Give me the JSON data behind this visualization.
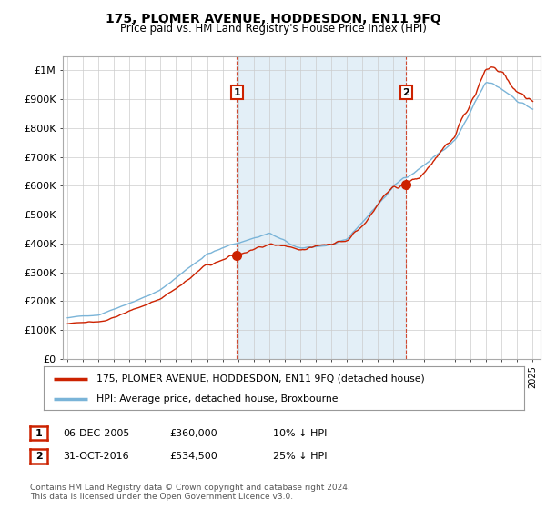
{
  "title": "175, PLOMER AVENUE, HODDESDON, EN11 9FQ",
  "subtitle": "Price paid vs. HM Land Registry's House Price Index (HPI)",
  "ylim": [
    0,
    1050000
  ],
  "yticks": [
    0,
    100000,
    200000,
    300000,
    400000,
    500000,
    600000,
    700000,
    800000,
    900000,
    1000000
  ],
  "ytick_labels": [
    "£0",
    "£100K",
    "£200K",
    "£300K",
    "£400K",
    "£500K",
    "£600K",
    "£700K",
    "£800K",
    "£900K",
    "£1M"
  ],
  "hpi_color": "#7ab4d8",
  "hpi_fill_color": "#c8e0f0",
  "price_color": "#cc2200",
  "marker_color": "#cc2200",
  "vline_color": "#cc2200",
  "sale1_year": 2005.92,
  "sale1_price": 360000,
  "sale2_year": 2016.83,
  "sale2_price": 534500,
  "legend_line1": "175, PLOMER AVENUE, HODDESDON, EN11 9FQ (detached house)",
  "legend_line2": "HPI: Average price, detached house, Broxbourne",
  "table_row1": [
    "1",
    "06-DEC-2005",
    "£360,000",
    "10% ↓ HPI"
  ],
  "table_row2": [
    "2",
    "31-OCT-2016",
    "£534,500",
    "25% ↓ HPI"
  ],
  "footnote": "Contains HM Land Registry data © Crown copyright and database right 2024.\nThis data is licensed under the Open Government Licence v3.0.",
  "background_color": "#ffffff",
  "grid_color": "#cccccc"
}
